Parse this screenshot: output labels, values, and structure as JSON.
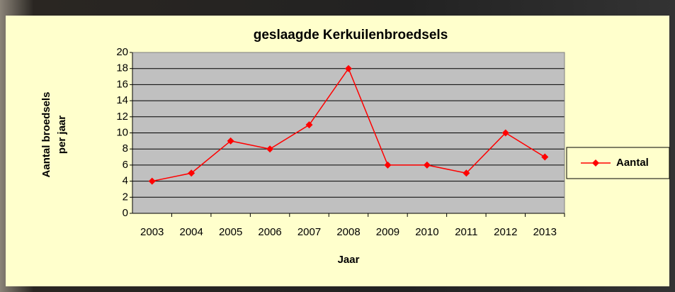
{
  "chart_data": {
    "type": "line",
    "title": "geslaagde Kerkuilenbroedsels",
    "x_label": "Jaar",
    "y_label_lines": [
      "Aantal broedsels",
      "per jaar"
    ],
    "categories": [
      "2003",
      "2004",
      "2005",
      "2006",
      "2007",
      "2008",
      "2009",
      "2010",
      "2011",
      "2012",
      "2013"
    ],
    "series": [
      {
        "name": "Aantal",
        "color": "#ff0000",
        "values": [
          4,
          5,
          9,
          8,
          11,
          18,
          6,
          6,
          5,
          10,
          7
        ]
      }
    ],
    "ylim": [
      0,
      20
    ],
    "yticks": [
      0,
      2,
      4,
      6,
      8,
      10,
      12,
      14,
      16,
      18,
      20
    ],
    "grid": true,
    "legend": "right"
  }
}
